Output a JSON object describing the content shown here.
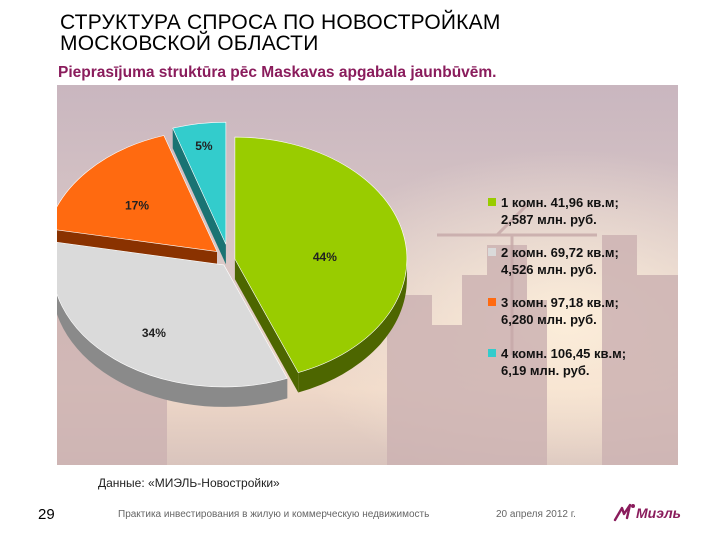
{
  "slide": {
    "title_line1": "СТРУКТУРА СПРОСА ПО НОВОСТРОЙКАМ",
    "title_line2": "МОСКОВСКОЙ  ОБЛАСТИ",
    "subtitle": "Pieprasījuma struktūra pēc Maskavas apgabala jaunbūvēm.",
    "source": "Данные:  «МИЭЛЬ-Новостройки»",
    "page_number": "29",
    "footer_text": "Практика инвестирования в жилую и коммерческую недвижимость",
    "footer_date": "20 апреля 2012 г.",
    "logo_text": "Миэль",
    "logo_icon": "miel-logo-icon"
  },
  "chart_data": {
    "type": "pie",
    "title": "",
    "slices": [
      {
        "label": "44%",
        "value": 44,
        "color": "#99cc00",
        "side_color": "#4d6600",
        "legend_line1": "1 комн. 41,96 кв.м;",
        "legend_line2": "2,587 млн. руб."
      },
      {
        "label": "34%",
        "value": 34,
        "color": "#dadada",
        "side_color": "#8a8a8a",
        "legend_line1": "2 комн. 69,72 кв.м;",
        "legend_line2": "4,526 млн. руб."
      },
      {
        "label": "17%",
        "value": 17,
        "color": "#ff6a10",
        "side_color": "#8a3200",
        "legend_line1": "3 комн. 97,18 кв.м;",
        "legend_line2": "6,280 млн. руб."
      },
      {
        "label": "5%",
        "value": 5,
        "color": "#33cccc",
        "side_color": "#1a7373",
        "legend_line1": "4 комн. 106,45 кв.м;",
        "legend_line2": "6,19 млн. руб."
      }
    ],
    "legend_position": "right",
    "style": "3d-exploded"
  }
}
